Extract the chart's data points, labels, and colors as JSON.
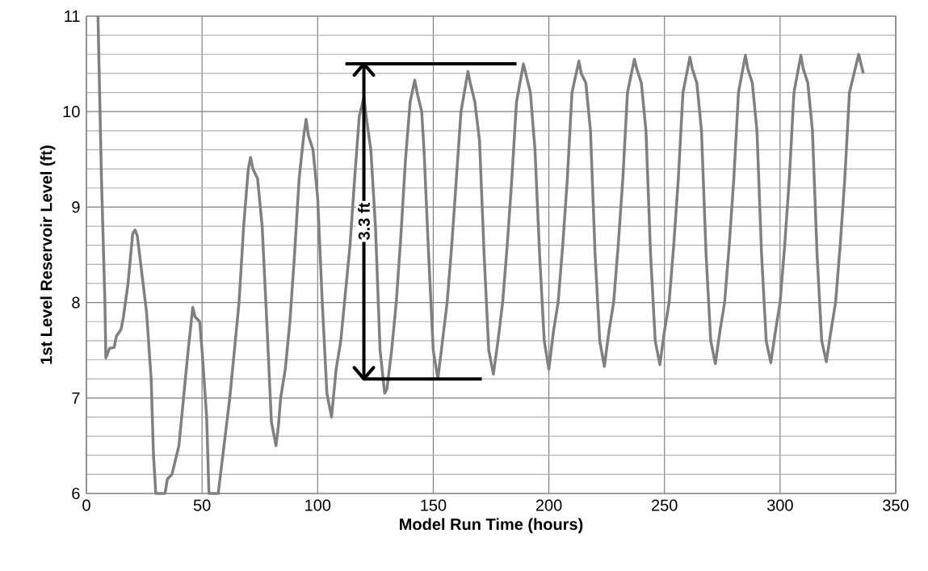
{
  "chart_data": {
    "type": "line",
    "xlabel": "Model Run Time (hours)",
    "ylabel": "1st Level Reservoir Level (ft)",
    "xlim": [
      0,
      350
    ],
    "ylim": [
      6,
      11
    ],
    "xticks": [
      0,
      50,
      100,
      150,
      200,
      250,
      300,
      350
    ],
    "yticks": [
      6,
      7,
      8,
      9,
      10,
      11
    ],
    "grid": true,
    "line_style": "solid",
    "marker": "none",
    "annotations": [
      "3.3 ft"
    ],
    "series": [
      {
        "color": "#808080",
        "x": [
          5,
          6.5,
          8,
          8.4,
          10,
          12,
          13,
          15,
          16,
          18,
          20,
          21,
          22,
          24,
          26,
          28,
          29,
          30,
          34,
          35,
          37,
          39,
          40,
          42,
          44,
          46,
          47,
          49,
          50,
          52,
          53,
          57,
          58,
          60,
          62,
          64,
          66,
          68,
          70,
          71,
          72,
          74,
          76,
          78,
          80,
          82,
          83,
          84,
          86,
          88,
          90,
          92,
          94,
          95,
          96,
          98,
          100,
          102,
          104,
          106,
          108,
          110,
          112,
          114,
          116,
          118,
          120,
          121,
          123,
          125,
          127,
          129,
          130,
          132,
          134,
          136,
          138,
          140,
          142,
          143,
          145,
          146,
          148,
          150,
          152,
          154,
          156,
          158,
          160,
          162,
          165,
          166,
          168,
          170,
          172,
          174,
          176,
          178,
          180,
          182,
          184,
          186,
          189,
          190,
          192,
          194,
          196,
          198,
          200,
          202,
          204,
          206,
          208,
          210,
          213,
          214,
          216,
          218,
          220,
          222,
          224,
          226,
          228,
          230,
          232,
          234,
          237,
          238,
          240,
          242,
          244,
          246,
          248,
          250,
          252,
          254,
          256,
          258,
          261,
          262,
          264,
          266,
          268,
          270,
          272,
          274,
          276,
          278,
          280,
          282,
          285,
          286,
          288,
          290,
          292,
          294,
          296,
          298,
          300,
          302,
          304,
          306,
          309,
          310,
          312,
          314,
          316,
          318,
          320,
          322,
          324,
          326,
          328,
          330,
          334,
          336
        ],
        "values": [
          11,
          9.3,
          8.0,
          7.42,
          7.52,
          7.53,
          7.65,
          7.72,
          7.85,
          8.2,
          8.72,
          8.76,
          8.7,
          8.3,
          7.9,
          7.2,
          6.4,
          6.0,
          6.0,
          6.15,
          6.2,
          6.4,
          6.5,
          7.0,
          7.5,
          7.95,
          7.85,
          7.8,
          7.5,
          6.8,
          6.0,
          6.0,
          6.2,
          6.6,
          7.0,
          7.5,
          8.0,
          8.8,
          9.4,
          9.52,
          9.4,
          9.3,
          8.8,
          7.8,
          6.75,
          6.5,
          6.7,
          7.0,
          7.3,
          7.8,
          8.5,
          9.3,
          9.75,
          9.92,
          9.75,
          9.6,
          9.1,
          8.0,
          7.05,
          6.8,
          7.3,
          7.6,
          8.1,
          8.6,
          9.3,
          9.95,
          10.15,
          9.95,
          9.6,
          8.8,
          7.5,
          7.05,
          7.1,
          7.5,
          8.0,
          8.7,
          9.5,
          10.1,
          10.33,
          10.2,
          10.0,
          9.6,
          8.5,
          7.5,
          7.2,
          7.6,
          8.0,
          8.6,
          9.3,
          10.0,
          10.42,
          10.3,
          10.1,
          9.7,
          8.5,
          7.5,
          7.25,
          7.6,
          8.0,
          8.6,
          9.3,
          10.1,
          10.5,
          10.4,
          10.2,
          9.6,
          8.5,
          7.6,
          7.3,
          7.7,
          8.0,
          8.6,
          9.3,
          10.2,
          10.53,
          10.4,
          10.3,
          9.8,
          8.5,
          7.6,
          7.33,
          7.7,
          8.0,
          8.6,
          9.3,
          10.2,
          10.55,
          10.45,
          10.3,
          9.8,
          8.5,
          7.6,
          7.35,
          7.7,
          8.0,
          8.6,
          9.3,
          10.2,
          10.57,
          10.45,
          10.3,
          9.8,
          8.5,
          7.6,
          7.36,
          7.7,
          8.0,
          8.6,
          9.3,
          10.2,
          10.59,
          10.45,
          10.3,
          9.8,
          8.5,
          7.6,
          7.37,
          7.7,
          8.0,
          8.6,
          9.3,
          10.2,
          10.59,
          10.45,
          10.3,
          9.8,
          8.5,
          7.6,
          7.38,
          7.7,
          8.0,
          8.6,
          9.3,
          10.2,
          10.6,
          10.4
        ]
      },
      {
        "color": "#000000",
        "x": [
          112,
          186
        ],
        "values": [
          10.5,
          10.5
        ]
      },
      {
        "color": "#000000",
        "x": [
          120,
          171
        ],
        "values": [
          7.2,
          7.2
        ]
      },
      {
        "color": "#000000",
        "x": [
          120,
          120
        ],
        "values": [
          7.2,
          10.5
        ]
      }
    ]
  }
}
